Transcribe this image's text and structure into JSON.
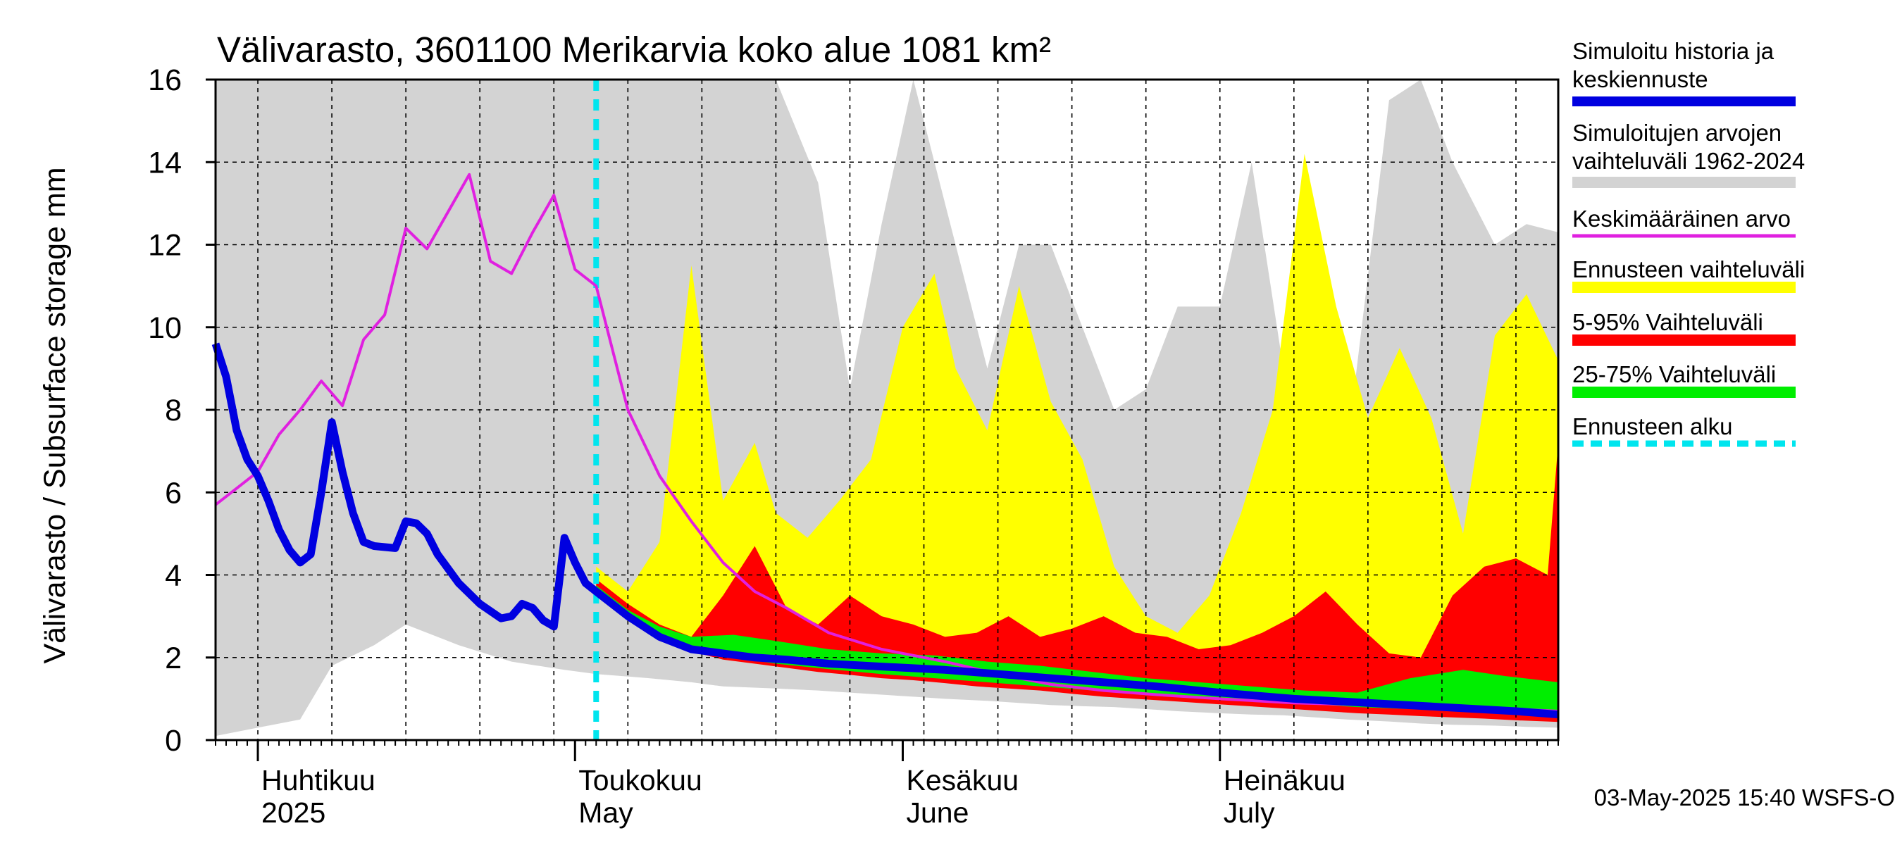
{
  "chart_data": {
    "type": "area",
    "title": "Välivarasto, 3601100 Merikarvia koko alue 1081 km²",
    "ylabel": "Välivarasto / Subsurface storage  mm",
    "ylim": [
      0,
      16
    ],
    "yticks": [
      "0",
      "2",
      "4",
      "6",
      "8",
      "10",
      "12",
      "14",
      "16"
    ],
    "x_start": "2025-03-28",
    "x_end": "2025-08-02",
    "forecast_start": "2025-05-03",
    "month_labels": [
      {
        "date": "2025-04-01",
        "fi": "Huhtikuu",
        "en": "2025"
      },
      {
        "date": "2025-05-01",
        "fi": "Toukokuu",
        "en": "May"
      },
      {
        "date": "2025-06-01",
        "fi": "Kesäkuu",
        "en": "June"
      },
      {
        "date": "2025-07-01",
        "fi": "Heinäkuu",
        "en": "July"
      }
    ],
    "legend": [
      {
        "label": "Simuloitu historia ja keskiennuste",
        "color": "#0000e0",
        "kind": "line"
      },
      {
        "label": "Simuloitujen arvojen vaihteluväli 1962-2024",
        "color": "#d3d3d3",
        "kind": "band"
      },
      {
        "label": "Keskimääräinen arvo",
        "color": "#e020e0",
        "kind": "thin"
      },
      {
        "label": "Ennusteen vaihteluväli",
        "color": "#ffff00",
        "kind": "band"
      },
      {
        "label": "5-95% Vaihteluväli",
        "color": "#ff0000",
        "kind": "band"
      },
      {
        "label": "25-75% Vaihteluväli",
        "color": "#00ee00",
        "kind": "band"
      },
      {
        "label": "Ennusteen alku",
        "color": "#00e5ee",
        "kind": "dash"
      }
    ],
    "footer": "03-May-2025 15:40 WSFS-O",
    "series": [
      {
        "name": "Simuloitujen arvojen vaihteluväli 1962-2024",
        "type": "band",
        "color": "#d3d3d3",
        "x": [
          "2025-03-28",
          "2025-04-01",
          "2025-04-05",
          "2025-04-08",
          "2025-04-12",
          "2025-04-15",
          "2025-04-20",
          "2025-04-25",
          "2025-04-30",
          "2025-05-03",
          "2025-05-08",
          "2025-05-12",
          "2025-05-15",
          "2025-05-20",
          "2025-05-24",
          "2025-05-27",
          "2025-05-30",
          "2025-06-02",
          "2025-06-05",
          "2025-06-09",
          "2025-06-12",
          "2025-06-15",
          "2025-06-18",
          "2025-06-21",
          "2025-06-24",
          "2025-06-27",
          "2025-07-01",
          "2025-07-04",
          "2025-07-07",
          "2025-07-10",
          "2025-07-13",
          "2025-07-17",
          "2025-07-20",
          "2025-07-23",
          "2025-07-27",
          "2025-07-30",
          "2025-08-02"
        ],
        "low": [
          0.1,
          0.3,
          0.5,
          1.8,
          2.3,
          2.8,
          2.3,
          1.9,
          1.7,
          1.6,
          1.5,
          1.4,
          1.3,
          1.25,
          1.2,
          1.15,
          1.1,
          1.05,
          1.0,
          0.95,
          0.9,
          0.85,
          0.82,
          0.8,
          0.75,
          0.7,
          0.65,
          0.62,
          0.6,
          0.55,
          0.5,
          0.45,
          0.4,
          0.37,
          0.35,
          0.32,
          0.3
        ],
        "high": [
          16,
          16,
          16,
          16,
          16,
          16,
          16,
          16,
          16,
          16,
          16,
          16,
          16,
          16,
          13.5,
          8.5,
          12.5,
          16,
          13,
          9,
          12,
          12,
          10,
          8,
          8.5,
          10.5,
          10.5,
          14,
          9,
          9.5,
          7,
          15.5,
          16,
          14,
          12,
          12.5,
          12.3
        ]
      },
      {
        "name": "Ennusteen vaihteluväli",
        "type": "band",
        "color": "#ffff00",
        "x": [
          "2025-05-03",
          "2025-05-06",
          "2025-05-09",
          "2025-05-12",
          "2025-05-15",
          "2025-05-18",
          "2025-05-20",
          "2025-05-23",
          "2025-05-26",
          "2025-05-29",
          "2025-06-01",
          "2025-06-04",
          "2025-06-06",
          "2025-06-09",
          "2025-06-12",
          "2025-06-15",
          "2025-06-18",
          "2025-06-21",
          "2025-06-24",
          "2025-06-27",
          "2025-06-30",
          "2025-07-03",
          "2025-07-06",
          "2025-07-09",
          "2025-07-12",
          "2025-07-15",
          "2025-07-18",
          "2025-07-21",
          "2025-07-24",
          "2025-07-27",
          "2025-07-30",
          "2025-08-02"
        ],
        "low": [
          3.6,
          3.0,
          2.5,
          2.3,
          2.15,
          2.05,
          2.0,
          1.9,
          1.85,
          1.8,
          1.75,
          1.7,
          1.65,
          1.6,
          1.55,
          1.5,
          1.45,
          1.4,
          1.35,
          1.3,
          1.25,
          1.2,
          1.15,
          1.1,
          1.05,
          1.0,
          0.95,
          0.9,
          0.85,
          0.8,
          0.75,
          0.7
        ],
        "high": [
          4.2,
          3.6,
          4.8,
          11.5,
          5.8,
          7.2,
          5.5,
          4.9,
          5.8,
          6.8,
          10.0,
          11.3,
          9.0,
          7.5,
          11.0,
          8.2,
          6.8,
          4.2,
          3.0,
          2.6,
          3.5,
          5.5,
          8.0,
          14.2,
          10.5,
          7.8,
          9.5,
          7.8,
          5.0,
          9.8,
          10.8,
          9.2
        ]
      },
      {
        "name": "5-95% Vaihteluväli",
        "type": "band",
        "color": "#ff0000",
        "x": [
          "2025-05-03",
          "2025-05-06",
          "2025-05-09",
          "2025-05-12",
          "2025-05-15",
          "2025-05-18",
          "2025-05-21",
          "2025-05-24",
          "2025-05-27",
          "2025-05-30",
          "2025-06-02",
          "2025-06-05",
          "2025-06-08",
          "2025-06-11",
          "2025-06-14",
          "2025-06-17",
          "2025-06-20",
          "2025-06-23",
          "2025-06-26",
          "2025-06-29",
          "2025-07-02",
          "2025-07-05",
          "2025-07-08",
          "2025-07-11",
          "2025-07-14",
          "2025-07-17",
          "2025-07-20",
          "2025-07-23",
          "2025-07-26",
          "2025-07-29",
          "2025-08-01",
          "2025-08-02"
        ],
        "low": [
          3.5,
          2.9,
          2.4,
          2.15,
          1.95,
          1.85,
          1.75,
          1.65,
          1.58,
          1.5,
          1.45,
          1.38,
          1.3,
          1.25,
          1.2,
          1.12,
          1.05,
          1.0,
          0.95,
          0.9,
          0.85,
          0.8,
          0.75,
          0.7,
          0.65,
          0.62,
          0.58,
          0.55,
          0.52,
          0.48,
          0.45,
          0.44
        ],
        "high": [
          3.9,
          3.3,
          2.8,
          2.5,
          3.5,
          4.7,
          3.2,
          2.8,
          3.5,
          3.0,
          2.8,
          2.5,
          2.6,
          3.0,
          2.5,
          2.7,
          3.0,
          2.6,
          2.5,
          2.2,
          2.3,
          2.6,
          3.0,
          3.6,
          2.8,
          2.1,
          2.0,
          3.5,
          4.2,
          4.4,
          4.0,
          7.2
        ]
      },
      {
        "name": "25-75% Vaihteluväli",
        "type": "band",
        "color": "#00ee00",
        "x": [
          "2025-05-03",
          "2025-05-06",
          "2025-05-09",
          "2025-05-12",
          "2025-05-16",
          "2025-05-20",
          "2025-05-25",
          "2025-05-30",
          "2025-06-04",
          "2025-06-09",
          "2025-06-14",
          "2025-06-19",
          "2025-06-24",
          "2025-06-29",
          "2025-07-04",
          "2025-07-09",
          "2025-07-14",
          "2025-07-19",
          "2025-07-24",
          "2025-07-28",
          "2025-08-02"
        ],
        "low": [
          3.55,
          2.95,
          2.45,
          2.2,
          2.0,
          1.85,
          1.72,
          1.6,
          1.5,
          1.4,
          1.3,
          1.2,
          1.1,
          1.02,
          0.95,
          0.88,
          0.8,
          0.75,
          0.7,
          0.65,
          0.6
        ],
        "high": [
          3.75,
          3.15,
          2.75,
          2.5,
          2.55,
          2.4,
          2.2,
          2.1,
          2.05,
          1.9,
          1.8,
          1.65,
          1.5,
          1.4,
          1.3,
          1.2,
          1.15,
          1.5,
          1.7,
          1.55,
          1.4
        ]
      },
      {
        "name": "Keskimääräinen arvo",
        "type": "line",
        "color": "#e020e0",
        "x": [
          "2025-03-28",
          "2025-03-30",
          "2025-04-01",
          "2025-04-03",
          "2025-04-05",
          "2025-04-07",
          "2025-04-09",
          "2025-04-11",
          "2025-04-13",
          "2025-04-15",
          "2025-04-17",
          "2025-04-19",
          "2025-04-21",
          "2025-04-23",
          "2025-04-25",
          "2025-04-27",
          "2025-04-29",
          "2025-05-01",
          "2025-05-03",
          "2025-05-06",
          "2025-05-09",
          "2025-05-12",
          "2025-05-15",
          "2025-05-18",
          "2025-05-21",
          "2025-05-25",
          "2025-05-30",
          "2025-06-05",
          "2025-06-10",
          "2025-06-15",
          "2025-06-20",
          "2025-06-25",
          "2025-07-01",
          "2025-07-08",
          "2025-07-15",
          "2025-07-22",
          "2025-07-29",
          "2025-08-02"
        ],
        "y": [
          5.7,
          6.1,
          6.5,
          7.4,
          8.0,
          8.7,
          8.1,
          9.7,
          10.3,
          12.4,
          11.9,
          12.8,
          13.7,
          11.6,
          11.3,
          12.3,
          13.2,
          11.4,
          11.0,
          8.0,
          6.4,
          5.3,
          4.3,
          3.6,
          3.2,
          2.6,
          2.2,
          1.9,
          1.6,
          1.35,
          1.2,
          1.1,
          1.0,
          0.9,
          0.85,
          0.8,
          0.75,
          0.7
        ]
      },
      {
        "name": "Simuloitu historia ja keskiennuste",
        "type": "line",
        "color": "#0000e0",
        "x": [
          "2025-03-28",
          "2025-03-29",
          "2025-03-30",
          "2025-03-31",
          "2025-04-01",
          "2025-04-02",
          "2025-04-03",
          "2025-04-04",
          "2025-04-05",
          "2025-04-06",
          "2025-04-07",
          "2025-04-08",
          "2025-04-09",
          "2025-04-10",
          "2025-04-11",
          "2025-04-12",
          "2025-04-14",
          "2025-04-15",
          "2025-04-16",
          "2025-04-17",
          "2025-04-18",
          "2025-04-20",
          "2025-04-22",
          "2025-04-24",
          "2025-04-25",
          "2025-04-26",
          "2025-04-27",
          "2025-04-28",
          "2025-04-29",
          "2025-04-30",
          "2025-05-01",
          "2025-05-02",
          "2025-05-03",
          "2025-05-06",
          "2025-05-09",
          "2025-05-12",
          "2025-05-15",
          "2025-05-18",
          "2025-05-21",
          "2025-05-25",
          "2025-05-30",
          "2025-06-05",
          "2025-06-10",
          "2025-06-15",
          "2025-06-20",
          "2025-06-25",
          "2025-07-01",
          "2025-07-08",
          "2025-07-15",
          "2025-07-22",
          "2025-07-29",
          "2025-08-02"
        ],
        "y": [
          9.6,
          8.8,
          7.5,
          6.8,
          6.4,
          5.8,
          5.1,
          4.6,
          4.3,
          4.5,
          6.0,
          7.7,
          6.5,
          5.5,
          4.8,
          4.7,
          4.65,
          5.3,
          5.25,
          5.0,
          4.5,
          3.8,
          3.3,
          2.95,
          3.0,
          3.3,
          3.2,
          2.9,
          2.75,
          4.9,
          4.3,
          3.8,
          3.6,
          3.0,
          2.5,
          2.2,
          2.1,
          2.0,
          1.95,
          1.85,
          1.78,
          1.7,
          1.6,
          1.5,
          1.4,
          1.3,
          1.15,
          1.0,
          0.9,
          0.8,
          0.7,
          0.62
        ]
      }
    ]
  }
}
